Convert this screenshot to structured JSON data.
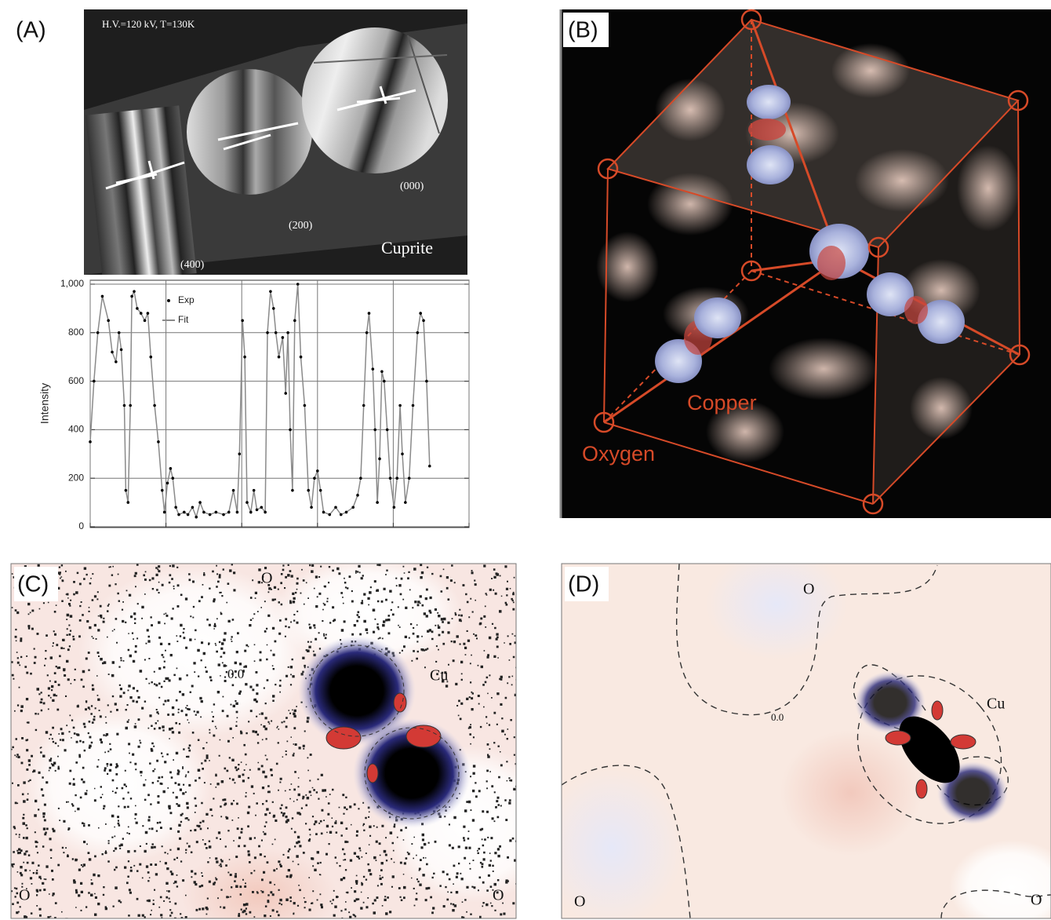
{
  "panels": [
    {
      "label": "(A)",
      "conditions": "H.V.=120 kV, T=130K",
      "reflections": [
        "(400)",
        "(200)",
        "(000)"
      ],
      "material": "Cuprite"
    },
    {
      "label": "(B)",
      "atoms": [
        "Copper",
        "Oxygen"
      ]
    },
    {
      "label": "(C)",
      "annotations": [
        "0.0",
        "Cu",
        "O",
        "O",
        "O"
      ]
    },
    {
      "label": "(D)",
      "annotations": [
        "0.0",
        "Cu",
        "O",
        "O",
        "O"
      ]
    }
  ],
  "chart_data": {
    "type": "line",
    "y_label": "Intensity",
    "x": [
      0,
      5,
      10,
      16,
      24,
      29,
      34,
      38,
      41,
      45,
      47,
      50,
      53,
      55,
      58,
      62,
      67,
      72,
      76,
      80,
      85,
      90,
      95,
      98,
      102,
      106,
      109,
      113,
      117,
      124,
      129,
      135,
      140,
      145,
      150,
      158,
      166,
      176,
      183,
      189,
      194,
      197,
      201,
      204,
      207,
      212,
      216,
      220,
      226,
      231,
      234,
      238,
      242,
      245,
      249,
      254,
      258,
      261,
      264,
      267,
      270,
      274,
      278,
      283,
      288,
      292,
      296,
      300,
      304,
      308,
      316,
      324,
      331,
      338,
      347,
      353,
      357,
      361,
      365,
      368,
      373,
      376,
      379,
      382,
      385,
      388,
      392,
      396,
      401,
      405,
      409,
      412,
      416,
      421,
      426,
      432,
      436,
      440,
      444,
      448
    ],
    "series": [
      {
        "name": "Exp",
        "color": "#000000",
        "values": [
          350,
          600,
          800,
          950,
          850,
          720,
          680,
          800,
          730,
          500,
          150,
          100,
          500,
          950,
          970,
          900,
          880,
          850,
          880,
          700,
          500,
          350,
          150,
          60,
          180,
          240,
          200,
          80,
          50,
          60,
          50,
          80,
          40,
          100,
          60,
          50,
          60,
          50,
          60,
          150,
          60,
          300,
          850,
          700,
          100,
          60,
          150,
          70,
          80,
          60,
          800,
          970,
          900,
          800,
          700,
          780,
          550,
          800,
          400,
          150,
          850,
          1000,
          700,
          500,
          150,
          80,
          200,
          230,
          150,
          60,
          50,
          80,
          50,
          60,
          80,
          130,
          200,
          500,
          800,
          880,
          650,
          400,
          100,
          280,
          640,
          600,
          400,
          200,
          80,
          200,
          500,
          300,
          100,
          200,
          500,
          800,
          880,
          850,
          600,
          250
        ]
      },
      {
        "name": "Fit",
        "color": "#8a8a8a",
        "values": [
          350,
          600,
          800,
          950,
          850,
          720,
          680,
          800,
          730,
          500,
          150,
          100,
          500,
          950,
          970,
          900,
          880,
          850,
          880,
          700,
          500,
          350,
          150,
          60,
          180,
          240,
          200,
          80,
          50,
          60,
          50,
          80,
          40,
          100,
          60,
          50,
          60,
          50,
          60,
          150,
          60,
          300,
          850,
          700,
          100,
          60,
          150,
          70,
          80,
          60,
          800,
          970,
          900,
          800,
          700,
          780,
          550,
          800,
          400,
          150,
          850,
          1000,
          700,
          500,
          150,
          80,
          200,
          230,
          150,
          60,
          50,
          80,
          50,
          60,
          80,
          130,
          200,
          500,
          800,
          880,
          650,
          400,
          100,
          280,
          640,
          600,
          400,
          200,
          80,
          200,
          500,
          300,
          100,
          200,
          500,
          800,
          880,
          850,
          600,
          250
        ]
      }
    ],
    "xlim": [
      0,
      500
    ],
    "xticks": [
      0,
      100,
      200,
      300,
      400,
      500
    ],
    "ylim": [
      0,
      1000
    ],
    "yticks": [
      0,
      200,
      400,
      600,
      800,
      {
        "value": 1000,
        "label": "1,000"
      }
    ],
    "grid": true,
    "legend": "upper-left"
  }
}
